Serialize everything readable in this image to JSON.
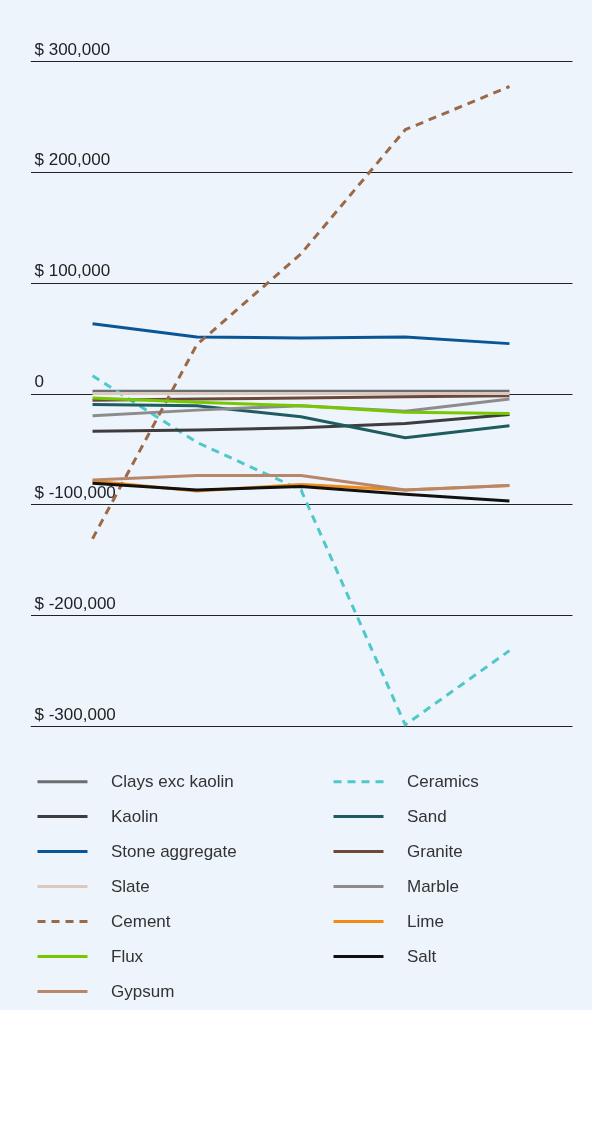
{
  "chart_data": {
    "type": "line",
    "categories": [
      null,
      null,
      null,
      null,
      null
    ],
    "ylim": [
      -300000,
      300000
    ],
    "yticks": [
      {
        "value": -300000,
        "label": "$ -300,000"
      },
      {
        "value": -200000,
        "label": "$ -200,000"
      },
      {
        "value": -100000,
        "label": "$ -100,000"
      },
      {
        "value": 0,
        "label": "0"
      },
      {
        "value": 100000,
        "label": "$ 100,000"
      },
      {
        "value": 200000,
        "label": "$ 200,000"
      },
      {
        "value": 300000,
        "label": "$ 300,000"
      }
    ],
    "grid": "y",
    "legend": "bottom",
    "tick_labels": "y",
    "line_style": "solid",
    "series": [
      {
        "name": "Clays exc kaolin",
        "color": "#6b6e70",
        "values": [
          2000,
          2000,
          2000,
          2000,
          2000
        ]
      },
      {
        "name": "Ceramics",
        "color": "#4ec8c8",
        "line_style": "dashed",
        "values": [
          16000,
          -44000,
          -87000,
          -299000,
          -232000
        ]
      },
      {
        "name": "Kaolin",
        "color": "#3d3d3f",
        "values": [
          -34000,
          -33000,
          -31000,
          -27000,
          -19000
        ]
      },
      {
        "name": "Sand",
        "color": "#1f5c60",
        "values": [
          -10000,
          -11000,
          -21000,
          -40000,
          -29000
        ]
      },
      {
        "name": "Stone aggregate",
        "color": "#0a5596",
        "values": [
          63000,
          51000,
          50000,
          51000,
          45000
        ]
      },
      {
        "name": "Granite",
        "color": "#6b4a3a",
        "values": [
          -6000,
          -5000,
          -4000,
          -3000,
          -2000
        ]
      },
      {
        "name": "Slate",
        "color": "#dcc8bc",
        "values": [
          0,
          0,
          0,
          0,
          0
        ]
      },
      {
        "name": "Marble",
        "color": "#8c8c8c",
        "values": [
          -20000,
          -15000,
          -11000,
          -16000,
          -5000
        ]
      },
      {
        "name": "Cement",
        "color": "#9a6a48",
        "line_style": "dashed",
        "values": [
          -131000,
          44000,
          126000,
          238000,
          277000
        ]
      },
      {
        "name": "Lime",
        "color": "#f08a14",
        "values": [
          -79000,
          -88000,
          -82000,
          -87000,
          -83000
        ]
      },
      {
        "name": "Flux",
        "color": "#78c800",
        "values": [
          -4000,
          -8000,
          -11000,
          -17000,
          -18000
        ]
      },
      {
        "name": "Salt",
        "color": "#111111",
        "values": [
          -81000,
          -87000,
          -84000,
          -91000,
          -97000
        ]
      },
      {
        "name": "Gypsum",
        "color": "#b8876a",
        "values": [
          -78000,
          -74000,
          -74000,
          -87000,
          -83000
        ]
      }
    ]
  }
}
